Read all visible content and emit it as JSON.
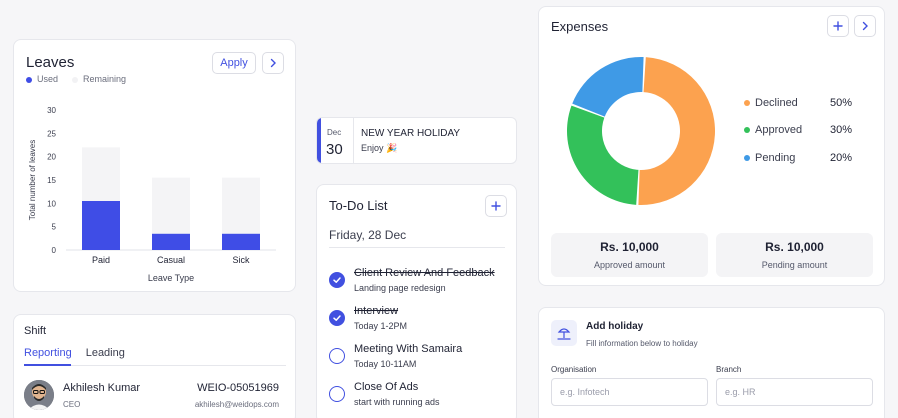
{
  "leaves": {
    "title": "Leaves",
    "apply_label": "Apply",
    "legend": [
      {
        "label": "Used",
        "color": "#3f4de6"
      },
      {
        "label": "Remaining",
        "color": "#f2f2f4"
      }
    ]
  },
  "chart_data": {
    "type": "bar",
    "stacked": true,
    "categories": [
      "Paid",
      "Casual",
      "Sick"
    ],
    "series": [
      {
        "name": "Used",
        "values": [
          10.5,
          3.5,
          3.5
        ],
        "color": "#3f4de6"
      },
      {
        "name": "Remaining",
        "values": [
          11.5,
          12,
          12
        ],
        "color": "#f4f4f6"
      }
    ],
    "xlabel": "Leave Type",
    "ylabel": "Total number of leaves",
    "ylim": [
      0,
      30
    ],
    "yticks": [
      0,
      5,
      10,
      15,
      20,
      25,
      30
    ],
    "grid": false
  },
  "holiday": {
    "month": "Dec",
    "day": "30",
    "title": "NEW YEAR HOLIDAY",
    "subtitle": "Enjoy 🎉"
  },
  "todo": {
    "title": "To-Do List",
    "date": "Friday, 28 Dec",
    "items": [
      {
        "title": "Client Review And Feedback",
        "subtitle": "Landing page redesign",
        "done": true
      },
      {
        "title": "Interview",
        "subtitle": "Today 1-2PM",
        "done": true
      },
      {
        "title": "Meeting With Samaira",
        "subtitle": "Today 10-11AM",
        "done": false
      },
      {
        "title": "Close Of Ads",
        "subtitle": "start with running ads",
        "done": false
      }
    ]
  },
  "shift": {
    "title": "Shift",
    "tabs": [
      "Reporting",
      "Leading"
    ],
    "active_tab": "Reporting",
    "employee": {
      "name": "Akhilesh Kumar",
      "role": "CEO",
      "id": "WEIO-05051969",
      "email": "akhilesh@weidops.com"
    }
  },
  "expenses": {
    "title": "Expenses",
    "breakdown": [
      {
        "label": "Declined",
        "percent": "50%",
        "value": 50,
        "color": "#fca24f"
      },
      {
        "label": "Approved",
        "percent": "30%",
        "value": 30,
        "color": "#33c15a"
      },
      {
        "label": "Pending",
        "percent": "20%",
        "value": 20,
        "color": "#3f9ae6"
      }
    ],
    "approved": {
      "amount": "Rs. 10,000",
      "label": "Approved amount"
    },
    "pending": {
      "amount": "Rs. 10,000",
      "label": "Pending amount"
    }
  },
  "add_holiday": {
    "title": "Add holiday",
    "subtitle": "Fill information below to holiday",
    "organisation": {
      "label": "Organisation",
      "placeholder": "e.g. Infotech"
    },
    "branch": {
      "label": "Branch",
      "placeholder": "e.g. HR"
    }
  }
}
